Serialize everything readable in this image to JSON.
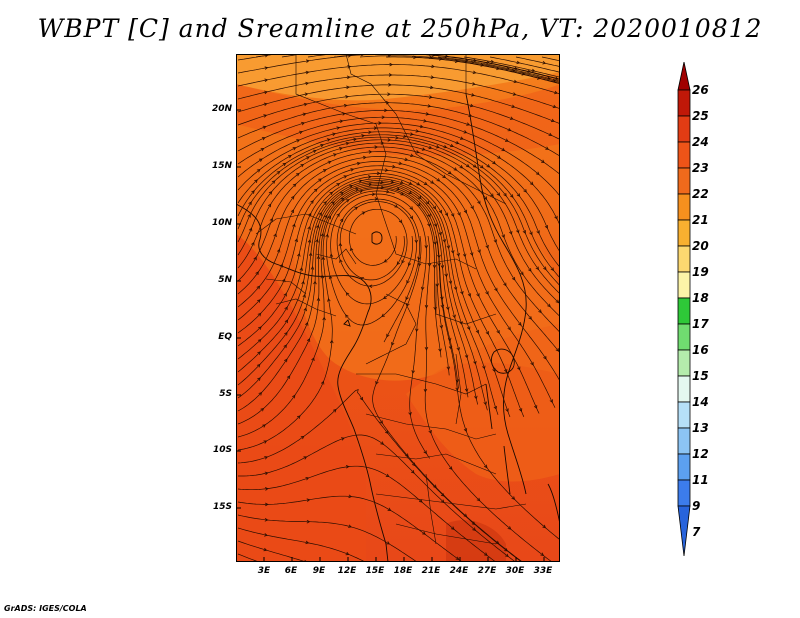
{
  "title": "WBPT [C] and Sreamline at 250hPa, VT: 2020010812",
  "footer": "GrADS: IGES/COLA",
  "map": {
    "region": "Africa",
    "lon_range_deg": [
      0,
      35
    ],
    "lat_range_deg": [
      -20,
      24
    ],
    "field": "WBPT",
    "overlay": "streamlines",
    "fill_colors": {
      "ocean_west": "#ee4a12",
      "land_north": "#f3701a",
      "sahara_top": "#f89a30",
      "south": "#e8481a",
      "indian_ocean": "#ea5618",
      "coast_lines": "#1a0800",
      "streamline": "#2a0d00"
    }
  },
  "lat_labels": [
    "20N",
    "15N",
    "10N",
    "5N",
    "EQ",
    "5S",
    "10S",
    "15S"
  ],
  "lon_labels": [
    "3E",
    "6E",
    "9E",
    "12E",
    "15E",
    "18E",
    "21E",
    "24E",
    "27E",
    "30E",
    "33E"
  ],
  "colorbar": {
    "levels": [
      "26",
      "25",
      "24",
      "23",
      "22",
      "21",
      "20",
      "19",
      "18",
      "17",
      "16",
      "15",
      "14",
      "13",
      "12",
      "11",
      "9",
      "7"
    ],
    "colors": [
      "#a00000",
      "#c01808",
      "#e23c14",
      "#ee5418",
      "#f06a1c",
      "#f6901e",
      "#f8b030",
      "#fcd870",
      "#fcf4a8",
      "#2ec838",
      "#70dc70",
      "#b4ecac",
      "#e4f8f0",
      "#b6e0f8",
      "#8cc4f4",
      "#5ca0f0",
      "#3c7cec",
      "#2864dc"
    ]
  }
}
